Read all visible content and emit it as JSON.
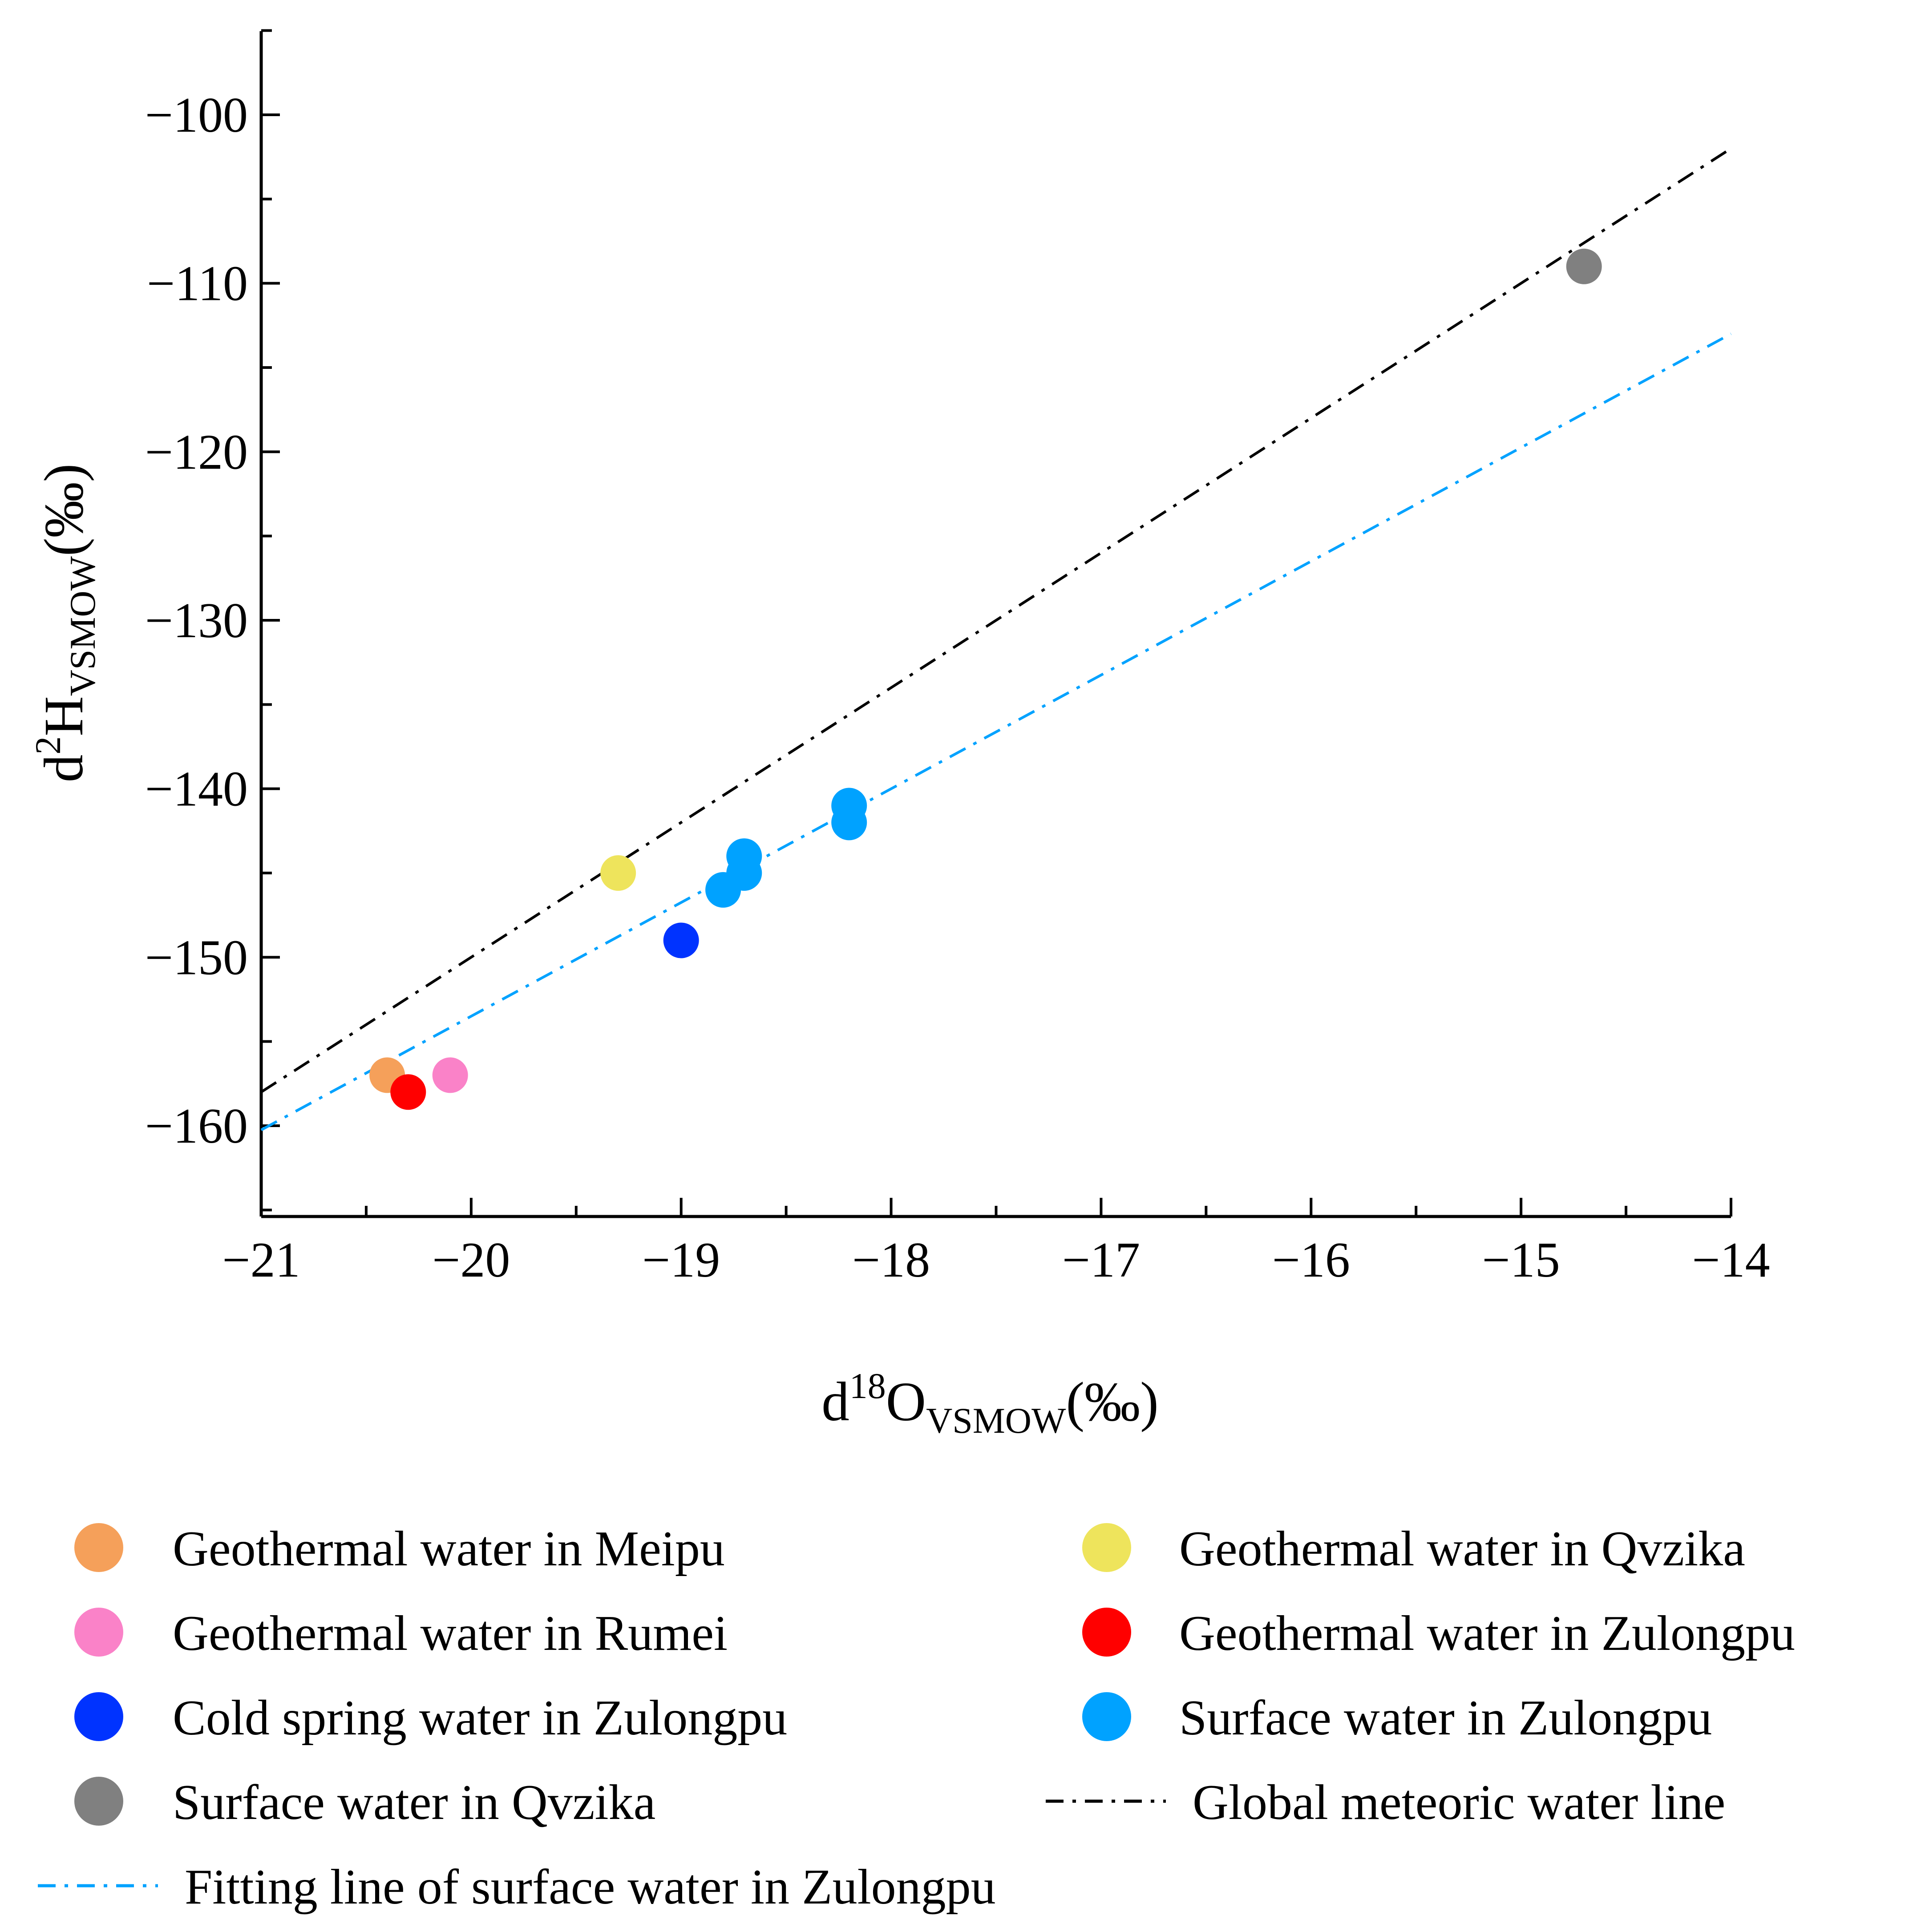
{
  "chart_data": {
    "type": "scatter",
    "x_axis": {
      "label_main": "d",
      "label_sup": "18",
      "label_letter": "O",
      "label_sub": "VSMOW",
      "label_unit": "(‰)",
      "range": [
        -21,
        -14
      ],
      "ticks": [
        -21,
        -20,
        -19,
        -18,
        -17,
        -16,
        -15,
        -14
      ],
      "tick_labels": [
        "−21",
        "−20",
        "−19",
        "−18",
        "−17",
        "−16",
        "−15",
        "−14"
      ]
    },
    "y_axis": {
      "label_main": "d",
      "label_sup": "2",
      "label_letter": "H",
      "label_sub": "VSMOW",
      "label_unit": "(‰)",
      "range": [
        -165,
        -95
      ],
      "ticks": [
        -160,
        -150,
        -140,
        -130,
        -120,
        -110,
        -100
      ],
      "tick_labels": [
        "−160",
        "−150",
        "−140",
        "−130",
        "−120",
        "−110",
        "−100"
      ]
    },
    "series": [
      {
        "name": "Geothermal water in Meipu",
        "color": "#F5A05A",
        "points": [
          [
            -20.4,
            -157
          ]
        ]
      },
      {
        "name": "Geothermal water in Qvzika",
        "color": "#EEE45C",
        "points": [
          [
            -19.3,
            -145
          ]
        ]
      },
      {
        "name": "Geothermal water in Rumei",
        "color": "#FA82C8",
        "points": [
          [
            -20.1,
            -157
          ]
        ]
      },
      {
        "name": "Geothermal water in Zulongpu",
        "color": "#FF0000",
        "points": [
          [
            -20.3,
            -158
          ]
        ]
      },
      {
        "name": "Cold spring water in Zulongpu",
        "color": "#0033FF",
        "points": [
          [
            -19.0,
            -149
          ]
        ]
      },
      {
        "name": "Surface water in Zulongpu",
        "color": "#00A2FF",
        "points": [
          [
            -18.8,
            -146
          ],
          [
            -18.7,
            -144
          ],
          [
            -18.7,
            -145
          ],
          [
            -18.2,
            -141
          ],
          [
            -18.2,
            -142
          ]
        ]
      },
      {
        "name": "Surface water in Qvzika",
        "color": "#808080",
        "points": [
          [
            -14.7,
            -109
          ]
        ]
      }
    ],
    "lines": [
      {
        "name": "Global meteoric water line",
        "color": "#000000",
        "slope": 8,
        "intercept": 10
      },
      {
        "name": "Fitting line of surface water in Zulongpu",
        "color": "#00A2FF",
        "slope": 6.75,
        "intercept": -18.5
      }
    ]
  }
}
